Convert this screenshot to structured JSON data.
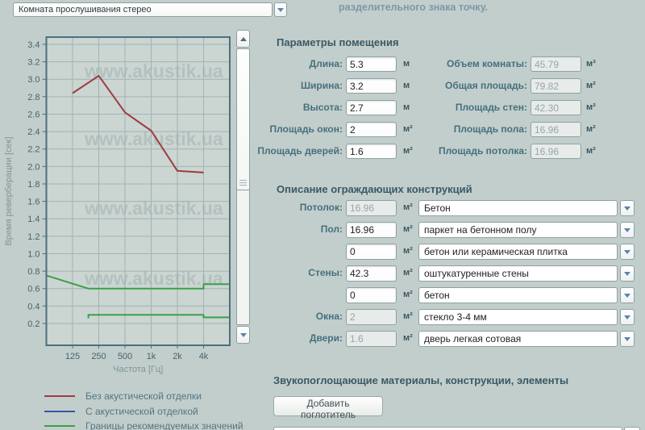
{
  "header": {
    "room_preset": "Комната прослушивания стерео",
    "note": "разделительного знака точку."
  },
  "chart_data": {
    "type": "line",
    "xlabel": "Частота [Гц]",
    "ylabel": "Время реверберации [сек]",
    "x_scale": "log2",
    "x_range": [
      62.5,
      8000
    ],
    "ylim": [
      -0.05,
      3.483
    ],
    "x_ticks": [
      [
        125,
        "125"
      ],
      [
        250,
        "250"
      ],
      [
        500,
        "500"
      ],
      [
        1000,
        "1k"
      ],
      [
        2000,
        "2k"
      ],
      [
        4000,
        "4k"
      ]
    ],
    "y_ticks": [
      3.4,
      3.2,
      3.0,
      2.8,
      2.6,
      2.4,
      2.2,
      2.0,
      1.8,
      1.6,
      1.4,
      1.2,
      1.0,
      0.8,
      0.6,
      0.4,
      0.2
    ],
    "grid": true,
    "watermark": "www.akustik.ua",
    "series": [
      {
        "name": "Без акустической отделки",
        "color": "#9e3b41",
        "points": [
          [
            125,
            2.84
          ],
          [
            250,
            3.04
          ],
          [
            500,
            2.62
          ],
          [
            1000,
            2.41
          ],
          [
            2000,
            1.95
          ],
          [
            4000,
            1.93
          ]
        ]
      },
      {
        "name": "Границы рекомендуемых значений (верхняя граница)",
        "color": "#3aa04a",
        "points": [
          [
            62.5,
            0.75
          ],
          [
            190,
            0.6
          ],
          [
            4000,
            0.6
          ],
          [
            4000,
            0.65
          ],
          [
            8000,
            0.65
          ]
        ]
      },
      {
        "name": "Границы рекомендуемых значений (нижняя граница)",
        "color": "#3aa04a",
        "points": [
          [
            190,
            0.26
          ],
          [
            190,
            0.3
          ],
          [
            4000,
            0.3
          ],
          [
            4000,
            0.27
          ],
          [
            8000,
            0.27
          ]
        ]
      }
    ],
    "legend": [
      {
        "label": "Без акустической отделки",
        "color": "#9e3b41"
      },
      {
        "label": "С акустической отделкой",
        "color": "#3a55a4"
      },
      {
        "label": "Границы рекомендуемых значений",
        "color": "#3aa04a"
      }
    ]
  },
  "params": {
    "title": "Параметры помещения",
    "left": [
      {
        "label": "Длина:",
        "value": "5.3",
        "unit": "м"
      },
      {
        "label": "Ширина:",
        "value": "3.2",
        "unit": "м"
      },
      {
        "label": "Высота:",
        "value": "2.7",
        "unit": "м"
      },
      {
        "label": "Площадь окон:",
        "value": "2",
        "unit": "м²"
      },
      {
        "label": "Площадь дверей:",
        "value": "1.6",
        "unit": "м²"
      }
    ],
    "right": [
      {
        "label": "Объем комнаты:",
        "value": "45.79",
        "unit": "м³"
      },
      {
        "label": "Общая площадь:",
        "value": "79.82",
        "unit": "м²"
      },
      {
        "label": "Площадь стен:",
        "value": "42.30",
        "unit": "м²"
      },
      {
        "label": "Площадь пола:",
        "value": "16.96",
        "unit": "м²"
      },
      {
        "label": "Площадь потолка:",
        "value": "16.96",
        "unit": "м²"
      }
    ]
  },
  "constructions": {
    "title": "Описание ограждающих конструкций",
    "rows": [
      {
        "label": "Потолок:",
        "area": "16.96",
        "unit": "м²",
        "material": "Бетон"
      },
      {
        "label": "Пол:",
        "area": "16.96",
        "unit": "м²",
        "material": "паркет на бетонном полу"
      },
      {
        "label": "",
        "area": "0",
        "unit": "м²",
        "material": "бетон или керамическая плитка"
      },
      {
        "label": "Стены:",
        "area": "42.3",
        "unit": "м²",
        "material": "оштукатуренные стены"
      },
      {
        "label": "",
        "area": "0",
        "unit": "м²",
        "material": "бетон"
      },
      {
        "label": "Окна:",
        "area": "2",
        "unit": "м²",
        "material": "стекло 3-4 мм"
      },
      {
        "label": "Двери:",
        "area": "1.6",
        "unit": "м²",
        "material": "дверь легкая сотовая"
      }
    ]
  },
  "absorbers": {
    "title": "Звукопоглощающие материалы, конструкции, элементы",
    "add_button": "Добавить поглотитель"
  }
}
